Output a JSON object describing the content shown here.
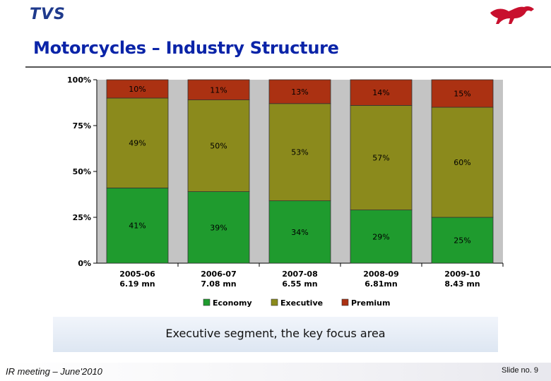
{
  "header": {
    "logo_text": "TVS",
    "logo_mark": "horse-icon",
    "title": "Motorcycles – Industry Structure"
  },
  "chart_data": {
    "type": "bar",
    "stacked": true,
    "percent": true,
    "categories": [
      "2005-06",
      "2006-07",
      "2007-08",
      "2008-09",
      "2009-10"
    ],
    "category_sublabels": [
      "6.19 mn",
      "7.08 mn",
      "6.55 mn",
      "6.81mn",
      "8.43 mn"
    ],
    "series": [
      {
        "name": "Economy",
        "color": "#1f9b2e",
        "values": [
          41,
          39,
          34,
          29,
          25
        ]
      },
      {
        "name": "Executive",
        "color": "#8b8a1c",
        "values": [
          49,
          50,
          53,
          57,
          60
        ]
      },
      {
        "name": "Premium",
        "color": "#ab3112",
        "values": [
          10,
          11,
          13,
          14,
          15
        ]
      }
    ],
    "data_labels": [
      [
        "41%",
        "39%",
        "34%",
        "29%",
        "25%"
      ],
      [
        "49%",
        "50%",
        "53%",
        "57%",
        "60%"
      ],
      [
        "10%",
        "11%",
        "13%",
        "14%",
        "15%"
      ]
    ],
    "yticks": [
      "0%",
      "25%",
      "50%",
      "75%",
      "100%"
    ],
    "ylim": [
      0,
      100
    ],
    "legend_position": "bottom"
  },
  "caption": "Executive segment, the key focus area",
  "footer": {
    "left": "IR meeting – June'2010",
    "right": "Slide no. 9"
  }
}
